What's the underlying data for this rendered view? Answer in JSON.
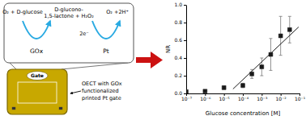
{
  "chart_data": {
    "type": "scatter",
    "log": "x",
    "grid": false,
    "xlabel": "Glucose concentration [M]",
    "ylabel": "NR",
    "xlim": [
      1e-07,
      0.1
    ],
    "ylim": [
      0.0,
      1.0
    ],
    "xticks": [
      {
        "value": 1e-07,
        "label": "10⁻⁷"
      },
      {
        "value": 1e-06,
        "label": "10⁻⁶"
      },
      {
        "value": 1e-05,
        "label": "10⁻⁵"
      },
      {
        "value": 0.0001,
        "label": "10⁻⁴"
      },
      {
        "value": 0.001,
        "label": "10⁻³"
      },
      {
        "value": 0.01,
        "label": "10⁻²"
      },
      {
        "value": 0.1,
        "label": "10⁻¹"
      }
    ],
    "yticks": [
      {
        "value": 0.0,
        "label": "0.0"
      },
      0.2,
      0.4,
      0.6,
      0.8,
      {
        "value": 1.0,
        "label": "1.0"
      }
    ],
    "series": [
      {
        "type": "scatter",
        "marker": "square",
        "color": "#1a1a1a",
        "x": [
          1e-07,
          1e-06,
          1e-05,
          0.0001,
          0.0003,
          0.001,
          0.003,
          0.01,
          0.03
        ],
        "values": [
          0.02,
          0.025,
          0.065,
          0.09,
          0.22,
          0.3,
          0.44,
          0.65,
          0.72
        ],
        "errors": [
          0.01,
          0.01,
          0.018,
          0.025,
          0.05,
          0.1,
          0.18,
          0.22,
          0.15
        ]
      },
      {
        "type": "line",
        "line_style": "solid",
        "color": "#1a1a1a",
        "x": [
          3e-05,
          0.09
        ],
        "values": [
          0.05,
          0.75
        ]
      }
    ],
    "annotations": [
      "O₂ + D-glucose",
      "D-glucono-",
      "1,5-lactone + H₂O₂",
      "O₂ +2H⁺",
      "GOx",
      "Pt",
      "2e⁻",
      "Gate",
      "OECT with GOx\nfunctionalized\nprinted Pt gate"
    ]
  }
}
